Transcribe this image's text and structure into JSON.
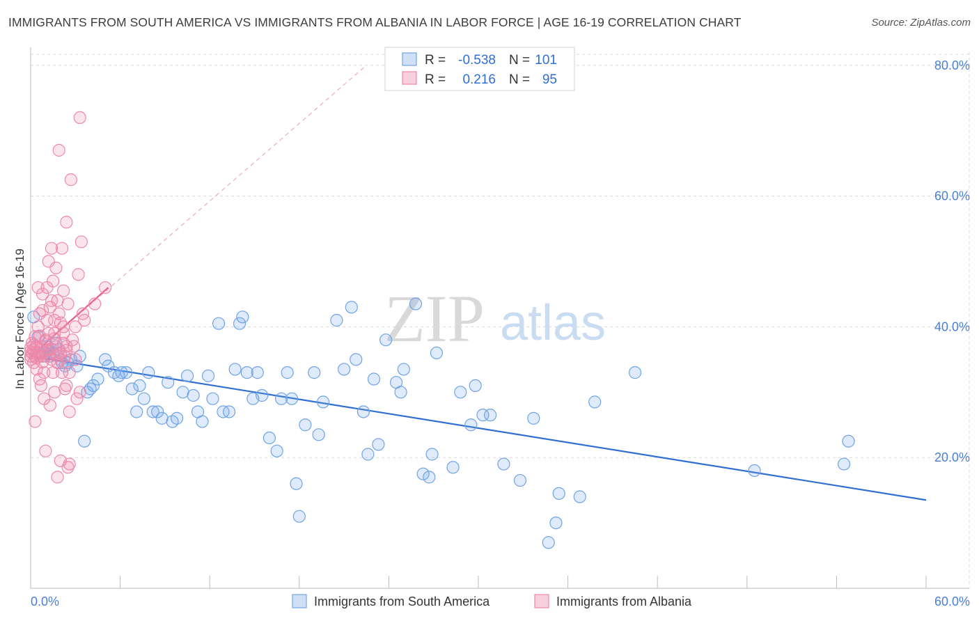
{
  "title": "IMMIGRANTS FROM SOUTH AMERICA VS IMMIGRANTS FROM ALBANIA IN LABOR FORCE | AGE 16-19 CORRELATION CHART",
  "source": "Source: ZipAtlas.com",
  "watermark": {
    "zip": "ZIP",
    "atlas": "atlas"
  },
  "colors": {
    "blue": "#6fa3e6",
    "blue_line": "#2f6fd1",
    "pink": "#ee88aa",
    "pink_line": "#e0608c",
    "axis_text": "#4a7fd4",
    "grid": "#d8d8d8"
  },
  "chart_data": {
    "type": "scatter",
    "title": "IMMIGRANTS FROM SOUTH AMERICA VS IMMIGRANTS FROM ALBANIA IN LABOR FORCE | AGE 16-19 CORRELATION CHART",
    "xlabel": "",
    "ylabel": "In Labor Force | Age 16-19",
    "xlim": [
      0,
      60
    ],
    "ylim": [
      0,
      82
    ],
    "x_tick_labels": [
      "0.0%",
      "60.0%"
    ],
    "y_ticks": [
      20,
      40,
      60,
      80
    ],
    "y_tick_labels": [
      "20.0%",
      "40.0%",
      "60.0%",
      "80.0%"
    ],
    "legend_position": "top-center",
    "stats": [
      {
        "r_label": "R =",
        "r_value": "-0.538",
        "n_label": "N =",
        "n_value": "101"
      },
      {
        "r_label": "R =",
        "r_value": "0.216",
        "n_label": "N =",
        "n_value": "95"
      }
    ],
    "series": [
      {
        "name": "Immigrants from South America",
        "color": "#6fa3e6",
        "trend": {
          "x": [
            0,
            60
          ],
          "y": [
            35.5,
            13.5
          ]
        },
        "points": [
          [
            0.2,
            41.5
          ],
          [
            0.5,
            38.5
          ],
          [
            0.6,
            36
          ],
          [
            0.8,
            35.5
          ],
          [
            1.0,
            36
          ],
          [
            1.1,
            37
          ],
          [
            1.2,
            36.5
          ],
          [
            1.3,
            35.5
          ],
          [
            1.5,
            36
          ],
          [
            1.7,
            37.5
          ],
          [
            1.9,
            36.5
          ],
          [
            2.1,
            34.5
          ],
          [
            2.3,
            34
          ],
          [
            2.5,
            34.5
          ],
          [
            2.7,
            35
          ],
          [
            3.1,
            34
          ],
          [
            3.3,
            35.5
          ],
          [
            3.6,
            22.5
          ],
          [
            3.8,
            30
          ],
          [
            4.0,
            30.5
          ],
          [
            4.2,
            31
          ],
          [
            4.5,
            32
          ],
          [
            5.0,
            35
          ],
          [
            5.2,
            34
          ],
          [
            5.6,
            33
          ],
          [
            5.9,
            32.5
          ],
          [
            6.1,
            33
          ],
          [
            6.4,
            33
          ],
          [
            6.8,
            30.5
          ],
          [
            7.1,
            27
          ],
          [
            7.3,
            31
          ],
          [
            7.6,
            29
          ],
          [
            7.9,
            33
          ],
          [
            8.2,
            27
          ],
          [
            8.5,
            27
          ],
          [
            8.8,
            26
          ],
          [
            9.2,
            31.5
          ],
          [
            9.5,
            25.5
          ],
          [
            9.8,
            26
          ],
          [
            10.2,
            30
          ],
          [
            10.5,
            32.5
          ],
          [
            10.9,
            29.5
          ],
          [
            11.2,
            27
          ],
          [
            11.5,
            25.5
          ],
          [
            11.9,
            32.5
          ],
          [
            12.2,
            29
          ],
          [
            12.6,
            40.5
          ],
          [
            12.9,
            27
          ],
          [
            13.3,
            27
          ],
          [
            13.7,
            33.5
          ],
          [
            14.0,
            40.5
          ],
          [
            14.2,
            41.5
          ],
          [
            14.5,
            33
          ],
          [
            14.9,
            29
          ],
          [
            15.2,
            33
          ],
          [
            15.5,
            29.5
          ],
          [
            16.0,
            23
          ],
          [
            16.5,
            21
          ],
          [
            16.8,
            29
          ],
          [
            17.2,
            33
          ],
          [
            17.5,
            29
          ],
          [
            17.8,
            16
          ],
          [
            18.0,
            11
          ],
          [
            18.4,
            25
          ],
          [
            19.0,
            33
          ],
          [
            19.3,
            23.5
          ],
          [
            19.6,
            28.5
          ],
          [
            20.5,
            41
          ],
          [
            21.0,
            33.5
          ],
          [
            21.5,
            43
          ],
          [
            21.8,
            35
          ],
          [
            22.3,
            27
          ],
          [
            22.6,
            20.5
          ],
          [
            23.0,
            32
          ],
          [
            23.3,
            22
          ],
          [
            23.8,
            38
          ],
          [
            24.5,
            31.5
          ],
          [
            24.8,
            30
          ],
          [
            25.0,
            33.5
          ],
          [
            25.8,
            43.5
          ],
          [
            26.3,
            17.5
          ],
          [
            26.7,
            17
          ],
          [
            26.9,
            20.5
          ],
          [
            27.2,
            36
          ],
          [
            28.3,
            18.5
          ],
          [
            28.8,
            30
          ],
          [
            29.5,
            25
          ],
          [
            29.8,
            31
          ],
          [
            30.3,
            26.5
          ],
          [
            30.8,
            26.5
          ],
          [
            31.7,
            19
          ],
          [
            32.8,
            16.5
          ],
          [
            33.7,
            26
          ],
          [
            35.4,
            14.5
          ],
          [
            36.8,
            14
          ],
          [
            37.8,
            28.5
          ],
          [
            35.2,
            10
          ],
          [
            34.7,
            7
          ],
          [
            40.5,
            33
          ],
          [
            48.5,
            18
          ],
          [
            54.5,
            19
          ],
          [
            54.8,
            22.5
          ]
        ]
      },
      {
        "name": "Immigrants from Albania",
        "color": "#ee88aa",
        "trend": {
          "x": [
            0,
            5.2
          ],
          "y": [
            35.5,
            46
          ]
        },
        "trend_extended": {
          "x": [
            0,
            22.5
          ],
          "y": [
            35.5,
            80
          ]
        },
        "points": [
          [
            0,
            35.5
          ],
          [
            0,
            36.2
          ],
          [
            0,
            36.8
          ],
          [
            0,
            35
          ],
          [
            0.1,
            37.5
          ],
          [
            0.1,
            36
          ],
          [
            0.2,
            34.5
          ],
          [
            0.2,
            36.5
          ],
          [
            0.3,
            35.5
          ],
          [
            0.3,
            38.5
          ],
          [
            0.4,
            37
          ],
          [
            0.4,
            33.5
          ],
          [
            0.5,
            36
          ],
          [
            0.5,
            40
          ],
          [
            0.6,
            35.5
          ],
          [
            0.6,
            42
          ],
          [
            0.7,
            31
          ],
          [
            0.7,
            37
          ],
          [
            0.8,
            36
          ],
          [
            0.8,
            45
          ],
          [
            0.9,
            29
          ],
          [
            0.9,
            33
          ],
          [
            1.0,
            35.5
          ],
          [
            1.0,
            38
          ],
          [
            1.1,
            41
          ],
          [
            1.1,
            46
          ],
          [
            1.2,
            36.5
          ],
          [
            1.2,
            50
          ],
          [
            1.3,
            28
          ],
          [
            1.3,
            43
          ],
          [
            1.4,
            52
          ],
          [
            1.4,
            35
          ],
          [
            1.5,
            33
          ],
          [
            1.5,
            47
          ],
          [
            1.6,
            30
          ],
          [
            1.6,
            39
          ],
          [
            1.7,
            49
          ],
          [
            1.7,
            37
          ],
          [
            1.8,
            17
          ],
          [
            1.8,
            44
          ],
          [
            1.9,
            42
          ],
          [
            1.9,
            67
          ],
          [
            2.0,
            36
          ],
          [
            2.0,
            19.5
          ],
          [
            2.1,
            33
          ],
          [
            2.1,
            52
          ],
          [
            2.2,
            40
          ],
          [
            2.2,
            45.5
          ],
          [
            2.3,
            35.5
          ],
          [
            2.3,
            30.5
          ],
          [
            2.4,
            37
          ],
          [
            2.4,
            56
          ],
          [
            2.5,
            18.5
          ],
          [
            2.5,
            43.5
          ],
          [
            2.6,
            33
          ],
          [
            2.6,
            27
          ],
          [
            2.7,
            62.5
          ],
          [
            2.8,
            38
          ],
          [
            2.9,
            37
          ],
          [
            3.0,
            35
          ],
          [
            3.0,
            40
          ],
          [
            3.1,
            29
          ],
          [
            3.2,
            48
          ],
          [
            3.3,
            30
          ],
          [
            3.3,
            72
          ],
          [
            3.4,
            53
          ],
          [
            3.5,
            42
          ],
          [
            3.6,
            41
          ],
          [
            4.3,
            43.5
          ],
          [
            5.0,
            46
          ],
          [
            0.3,
            25.5
          ],
          [
            0.5,
            46
          ],
          [
            0.6,
            32
          ],
          [
            0.8,
            42.5
          ],
          [
            1.0,
            21
          ],
          [
            1.2,
            39
          ],
          [
            1.4,
            44
          ],
          [
            1.6,
            41
          ],
          [
            1.8,
            34.5
          ],
          [
            2.0,
            35
          ],
          [
            2.2,
            37.5
          ],
          [
            2.4,
            31
          ],
          [
            2.6,
            19
          ],
          [
            0.2,
            37.2
          ],
          [
            0.4,
            35.2
          ],
          [
            0.6,
            38.6
          ],
          [
            0.8,
            34.6
          ],
          [
            1.0,
            37.8
          ],
          [
            1.2,
            35.8
          ],
          [
            1.4,
            36.6
          ],
          [
            1.6,
            38.2
          ],
          [
            1.8,
            35.6
          ],
          [
            2.0,
            40.6
          ],
          [
            2.2,
            39
          ],
          [
            2.4,
            36.4
          ]
        ]
      }
    ]
  },
  "legend": {
    "items": [
      "Immigrants from South America",
      "Immigrants from Albania"
    ]
  }
}
